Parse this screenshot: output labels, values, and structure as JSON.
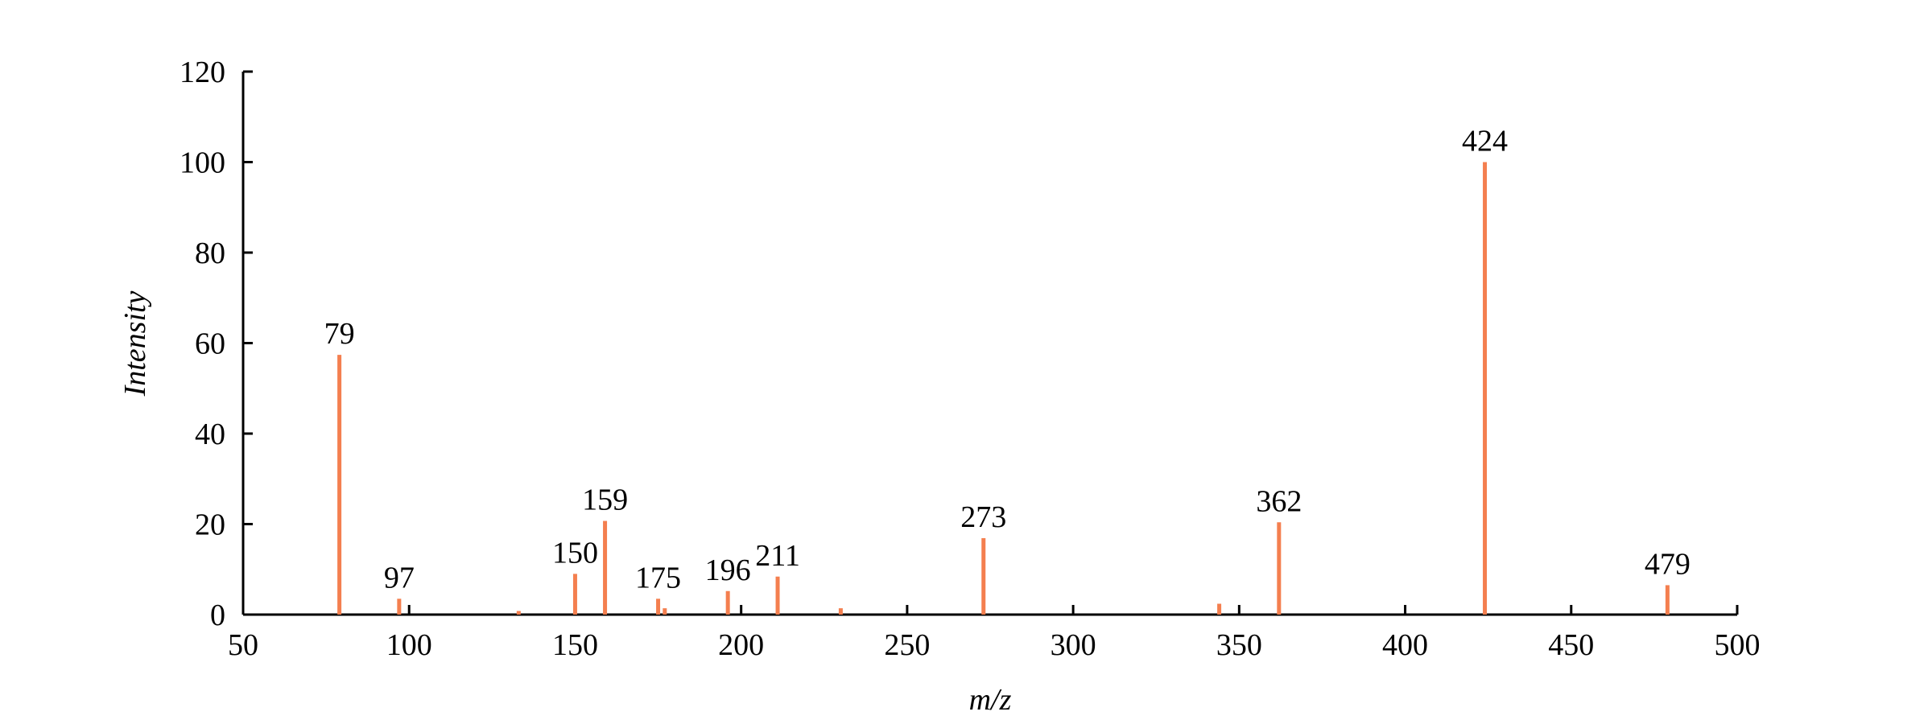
{
  "chart_data": {
    "type": "stem",
    "xlabel": "m/z",
    "ylabel": "Intensity",
    "x": [
      79,
      97,
      133,
      150,
      159,
      175,
      177,
      196,
      211,
      230,
      273,
      344,
      362,
      424,
      479
    ],
    "values": [
      57.4,
      3.5,
      0.8,
      9.0,
      20.7,
      3.5,
      1.4,
      5.2,
      8.4,
      1.4,
      16.9,
      2.4,
      20.4,
      100,
      6.5
    ],
    "point_labels": [
      79,
      97,
      null,
      150,
      159,
      175,
      null,
      196,
      211,
      null,
      273,
      null,
      362,
      424,
      479
    ],
    "color": "#f47f4f",
    "xlim": [
      50,
      500
    ],
    "xticks": [
      50,
      100,
      150,
      200,
      250,
      300,
      350,
      400,
      450,
      500
    ],
    "ylim": [
      0,
      120
    ],
    "yticks": [
      0,
      20,
      40,
      60,
      80,
      100,
      120
    ]
  }
}
